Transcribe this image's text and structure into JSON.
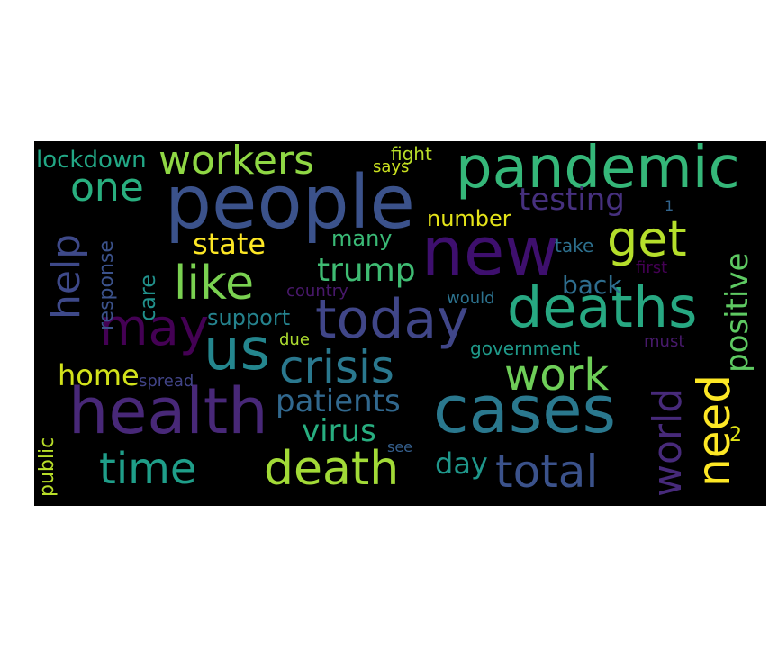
{
  "background": "#000000",
  "words": [
    {
      "text": "people",
      "color": "#3b528b"
    },
    {
      "text": "pandemic",
      "color": "#35b779"
    },
    {
      "text": "new",
      "color": "#3e0f6e"
    },
    {
      "text": "deaths",
      "color": "#27a882"
    },
    {
      "text": "cases",
      "color": "#2a788e"
    },
    {
      "text": "health",
      "color": "#482878"
    },
    {
      "text": "today",
      "color": "#404688"
    },
    {
      "text": "us",
      "color": "#24868e"
    },
    {
      "text": "crisis",
      "color": "#2a788e"
    },
    {
      "text": "may",
      "color": "#440154"
    },
    {
      "text": "workers",
      "color": "#8fd744"
    },
    {
      "text": "one",
      "color": "#29af7f"
    },
    {
      "text": "like",
      "color": "#7ad151"
    },
    {
      "text": "get",
      "color": "#b5de2b"
    },
    {
      "text": "death",
      "color": "#a2da37"
    },
    {
      "text": "time",
      "color": "#1f9e89"
    },
    {
      "text": "total",
      "color": "#3b528b"
    },
    {
      "text": "work",
      "color": "#6ece58"
    },
    {
      "text": "world",
      "color": "#472a7a"
    },
    {
      "text": "need",
      "color": "#fde725"
    },
    {
      "text": "help",
      "color": "#3e4989"
    },
    {
      "text": "positive",
      "color": "#5ec962"
    },
    {
      "text": "testing",
      "color": "#46307e"
    },
    {
      "text": "trump",
      "color": "#3fbc73"
    },
    {
      "text": "state",
      "color": "#fde725"
    },
    {
      "text": "patients",
      "color": "#31688e"
    },
    {
      "text": "virus",
      "color": "#28ae80"
    },
    {
      "text": "home",
      "color": "#d2e21b"
    },
    {
      "text": "lockdown",
      "color": "#22a785"
    },
    {
      "text": "number",
      "color": "#e5e419"
    },
    {
      "text": "many",
      "color": "#3aba76"
    },
    {
      "text": "support",
      "color": "#25838e"
    },
    {
      "text": "day",
      "color": "#1f978b"
    },
    {
      "text": "back",
      "color": "#2e6d8e"
    },
    {
      "text": "response",
      "color": "#3b528b"
    },
    {
      "text": "care",
      "color": "#21918c"
    },
    {
      "text": "public",
      "color": "#b8de29"
    },
    {
      "text": "government",
      "color": "#1f9a8a"
    },
    {
      "text": "take",
      "color": "#2d708e"
    },
    {
      "text": "first",
      "color": "#440154"
    },
    {
      "text": "would",
      "color": "#2c728e"
    },
    {
      "text": "must",
      "color": "#481a6c"
    },
    {
      "text": "country",
      "color": "#48186a"
    },
    {
      "text": "spread",
      "color": "#414487"
    },
    {
      "text": "due",
      "color": "#addc30"
    },
    {
      "text": "fight",
      "color": "#b8de29"
    },
    {
      "text": "says",
      "color": "#cae11f"
    },
    {
      "text": "see",
      "color": "#355f8d"
    },
    {
      "text": "1",
      "color": "#32658e"
    },
    {
      "text": "2",
      "color": "#e2e418"
    }
  ]
}
